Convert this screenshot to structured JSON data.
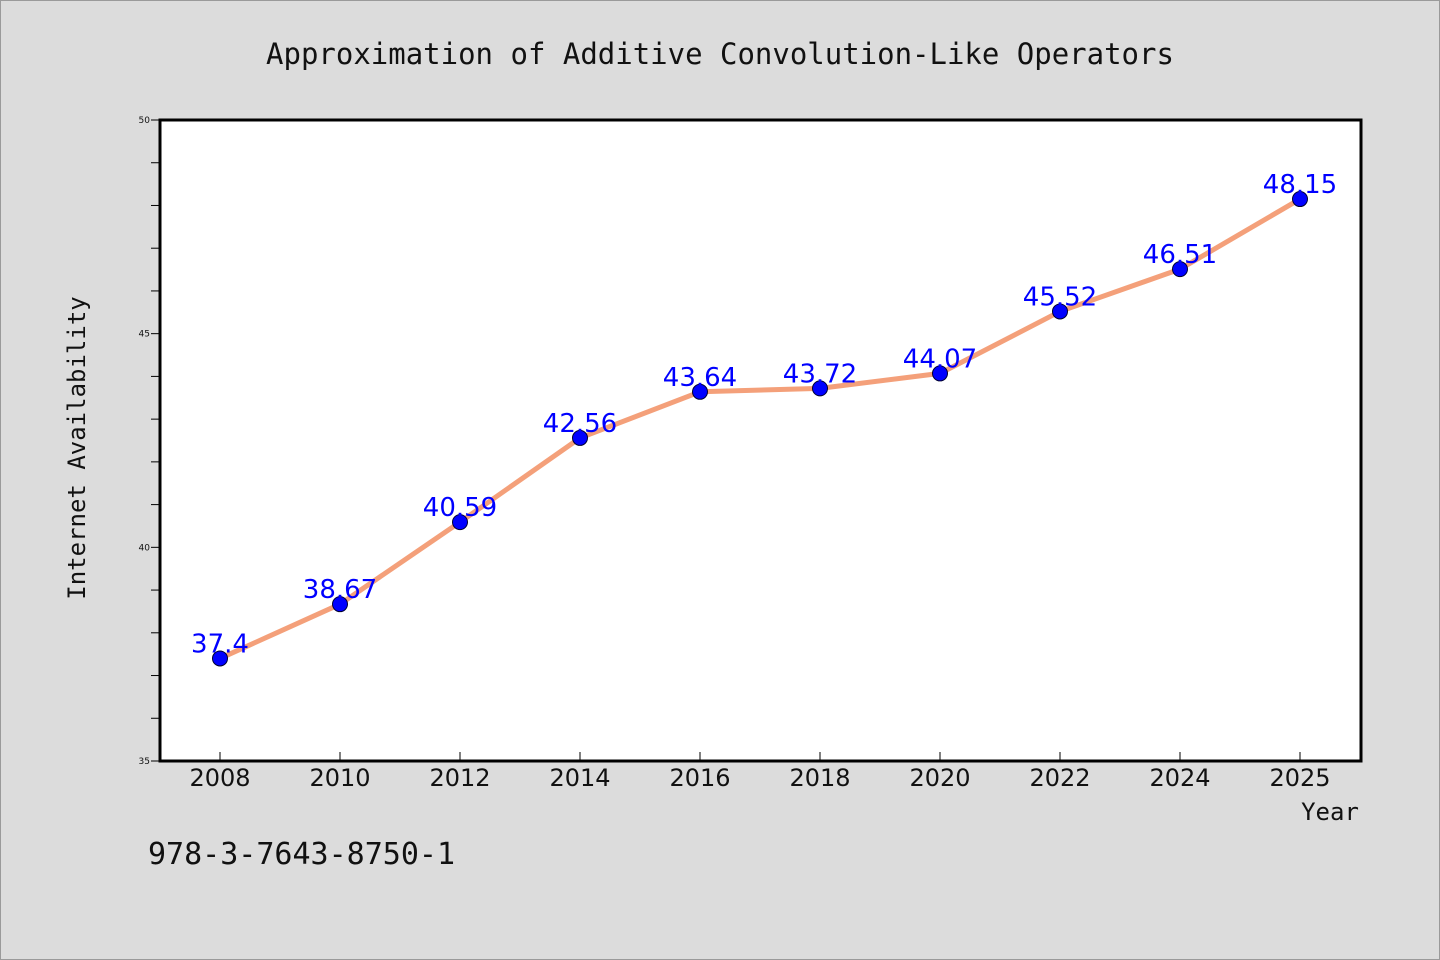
{
  "chart_data": {
    "type": "line",
    "title": "Approximation of Additive Convolution-Like Operators",
    "xlabel": "Year",
    "ylabel": "Internet Availability",
    "x_ticks": [
      "2008",
      "2010",
      "2012",
      "2014",
      "2016",
      "2018",
      "2020",
      "2022",
      "2024",
      "2025"
    ],
    "ylim": [
      35,
      50
    ],
    "y_major_ticks": [
      35,
      40,
      45,
      50
    ],
    "y_minor_tick_step": 1,
    "grid": false,
    "legend": "none",
    "series": [
      {
        "x": [
          "2008",
          "2010",
          "2012",
          "2014",
          "2016",
          "2018",
          "2020",
          "2022",
          "2024",
          "2025"
        ],
        "values": [
          37.4,
          38.67,
          40.59,
          42.56,
          43.64,
          43.72,
          44.07,
          45.52,
          46.51,
          48.15
        ],
        "data_labels": [
          "37.4",
          "38.67",
          "40.59",
          "42.56",
          "43.64",
          "43.72",
          "44.07",
          "45.52",
          "46.51",
          "48.15"
        ],
        "line_color": "#f4a07a",
        "marker_color": "#0000ff"
      }
    ],
    "annotation": "978-3-7643-8750-1"
  },
  "colors": {
    "background": "#dcdcdc",
    "plot_area": "#ffffff",
    "line": "#f4a07a",
    "marker": "#0000ff",
    "data_label": "#0000ff"
  }
}
